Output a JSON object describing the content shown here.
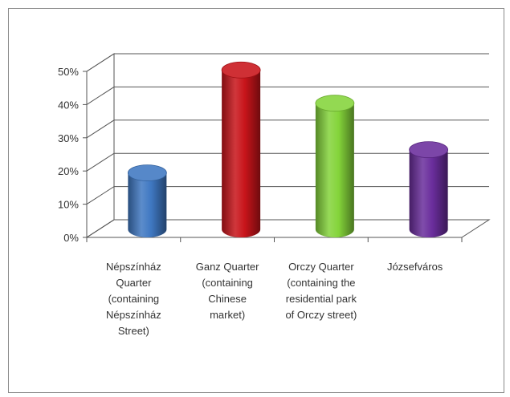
{
  "chart_data": {
    "type": "bar",
    "style": "3d-cylinder",
    "categories": [
      "Népszínház\nQuarter\n(containing\nNépszínház\nStreet)",
      "Ganz Quarter\n(containing\nChinese\nmarket)",
      "Orczy Quarter\n(containing the\nresidential park\nof Orczy street)",
      "Józsefváros"
    ],
    "values": [
      17,
      48,
      38,
      24
    ],
    "colors": [
      "#3f78c2",
      "#c8141a",
      "#84d43a",
      "#6a2d9c"
    ],
    "ylim": [
      0,
      50
    ],
    "yticks": [
      "0%",
      "10%",
      "20%",
      "30%",
      "40%",
      "50%"
    ],
    "grid": true,
    "legend": "none"
  }
}
